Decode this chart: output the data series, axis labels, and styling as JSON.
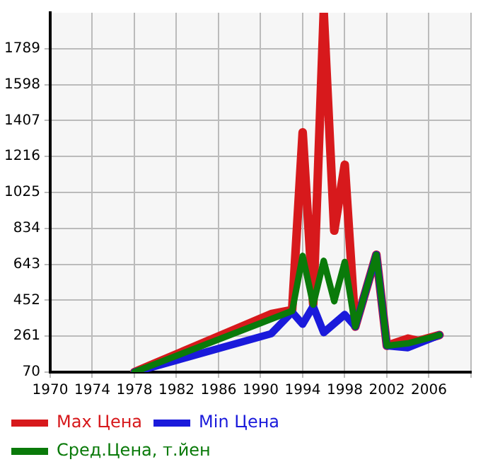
{
  "chart_data": {
    "type": "line",
    "xlim": [
      1970,
      2010
    ],
    "xticks": [
      1970,
      1974,
      1978,
      1982,
      1986,
      1990,
      1994,
      1998,
      2002,
      2006,
      {
        "value": 2010,
        "label": null
      }
    ],
    "ylim": [
      70,
      1980
    ],
    "yticks": [
      70,
      261,
      452,
      643,
      834,
      1025,
      1216,
      1407,
      1598,
      1789
    ],
    "grid": true,
    "legend": "bottom",
    "marker": "none",
    "line_style": "solid",
    "series": [
      {
        "name": "Max Цена",
        "color": "#d7191c",
        "x": [
          1978,
          1991,
          1993,
          1994,
          1995,
          1996,
          1997,
          1998,
          1999,
          2001,
          2002,
          2004,
          2005,
          2007
        ],
        "values": [
          70,
          378,
          400,
          1344,
          430,
          1980,
          822,
          1172,
          312,
          694,
          210,
          248,
          236,
          267
        ]
      },
      {
        "name": "Min Цена",
        "color": "#1a1adb",
        "x": [
          1978,
          1991,
          1993,
          1994,
          1995,
          1996,
          1998,
          1999,
          2001,
          2002,
          2004,
          2007
        ],
        "values": [
          70,
          274,
          389,
          325,
          420,
          280,
          376,
          312,
          694,
          210,
          200,
          267
        ]
      },
      {
        "name": "Сред.Цена, т.йен",
        "color": "#0a7a0a",
        "x": [
          1978,
          1993,
          1994,
          1995,
          1996,
          1997,
          1998,
          1999,
          2001,
          2002,
          2004,
          2007
        ],
        "values": [
          70,
          395,
          688,
          428,
          662,
          446,
          656,
          312,
          694,
          210,
          223,
          267
        ]
      }
    ]
  }
}
